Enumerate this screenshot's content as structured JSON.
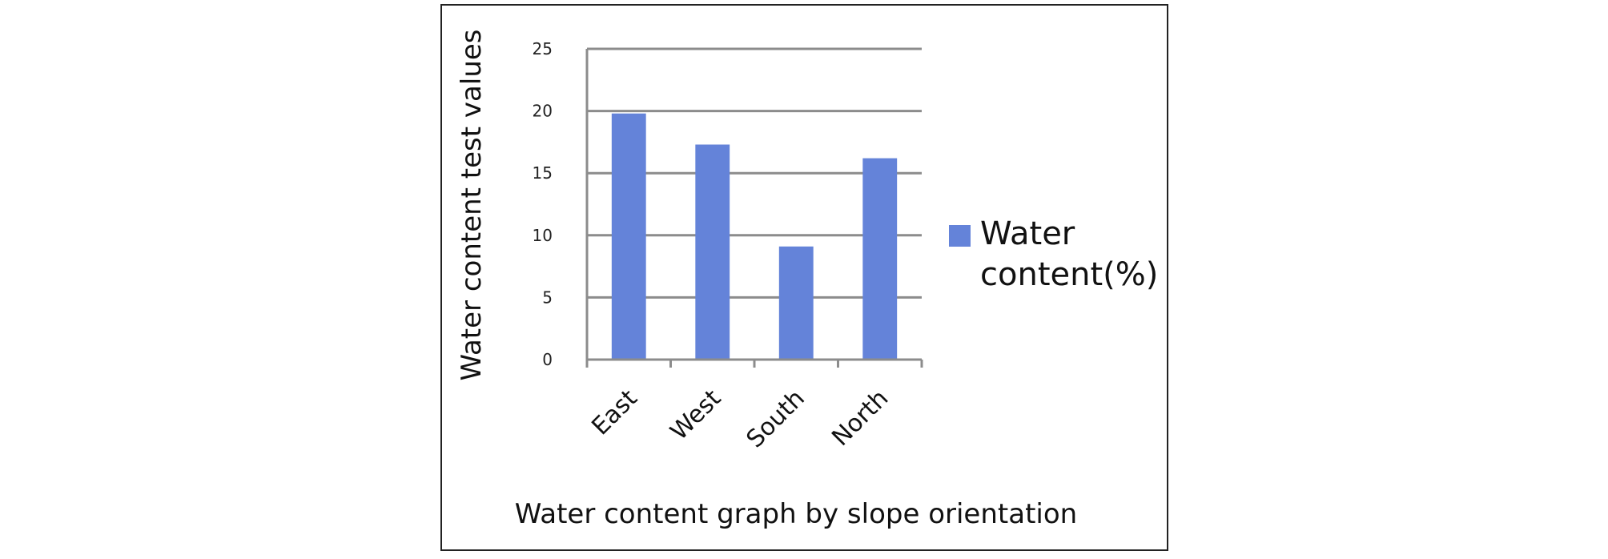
{
  "chart_data": {
    "type": "bar",
    "categories": [
      "East",
      "West",
      "South",
      "North"
    ],
    "series": [
      {
        "name": "Water content(%)",
        "values": [
          19.8,
          17.3,
          9.1,
          16.2
        ],
        "color": "#6483d9"
      }
    ],
    "ylabel": "Water content test values",
    "xlabel": "Water content graph by slope orientation",
    "ylim": [
      0,
      25
    ],
    "yticks": [
      "0",
      "5",
      "10",
      "15",
      "20",
      "25"
    ],
    "grid": true,
    "legend": "right",
    "legend_lines": [
      "Water",
      "content(%)"
    ],
    "grid_color": "#8c8c8c",
    "axis_color": "#8c8c8c",
    "frame_color": "#222222"
  }
}
